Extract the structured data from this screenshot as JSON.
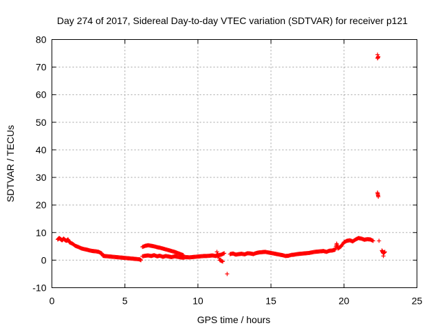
{
  "chart_data": {
    "type": "scatter",
    "title": "Day 274 of 2017, Sidereal Day-to-day VTEC variation (SDTVAR) for receiver p121",
    "xlabel": "GPS time / hours",
    "ylabel": "SDTVAR / TECUs",
    "xlim": [
      0,
      25
    ],
    "ylim": [
      -10,
      80
    ],
    "xticks": [
      "0",
      "5",
      "10",
      "15",
      "20",
      "25"
    ],
    "yticks": [
      "-10",
      "0",
      "10",
      "20",
      "30",
      "40",
      "50",
      "60",
      "70",
      "80"
    ],
    "grid": true,
    "marker": "plus",
    "color": "#ff0000",
    "series": [
      {
        "name": "SDTVAR",
        "x": [
          0.4,
          0.5,
          0.6,
          0.7,
          0.8,
          0.9,
          1.0,
          1.1,
          1.2,
          1.4,
          1.6,
          1.8,
          2.0,
          2.2,
          2.4,
          2.6,
          2.8,
          3.0,
          3.2,
          3.4,
          3.5,
          3.6,
          3.8,
          4.0,
          4.2,
          4.4,
          4.6,
          4.8,
          5.0,
          5.2,
          5.4,
          5.6,
          5.8,
          6.0,
          6.1,
          6.2,
          6.4,
          6.6,
          6.8,
          7.0,
          7.2,
          7.4,
          7.6,
          7.8,
          8.0,
          8.2,
          8.4,
          8.6,
          8.8,
          9.0,
          6.2,
          6.4,
          6.6,
          6.8,
          7.0,
          7.2,
          7.4,
          7.6,
          7.8,
          8.0,
          8.2,
          8.4,
          8.6,
          8.8,
          9.0,
          9.2,
          9.4,
          9.6,
          9.8,
          10.0,
          10.2,
          10.4,
          10.6,
          10.8,
          11.0,
          11.2,
          11.4,
          11.6,
          11.8,
          11.3,
          11.5,
          11.7,
          12.0,
          12.2,
          12.4,
          12.6,
          12.8,
          13.0,
          13.2,
          13.4,
          13.6,
          13.8,
          14.0,
          14.2,
          14.4,
          14.6,
          14.8,
          15.0,
          15.2,
          15.4,
          15.6,
          15.8,
          16.0,
          16.2,
          16.4,
          16.6,
          16.8,
          17.0,
          17.2,
          17.4,
          17.6,
          17.8,
          18.0,
          18.2,
          18.4,
          18.6,
          18.8,
          19.0,
          19.2,
          19.4,
          19.5,
          19.6,
          19.8,
          20.0,
          20.2,
          20.4,
          20.6,
          20.8,
          21.0,
          21.2,
          21.4,
          21.6,
          21.8,
          22.0,
          22.3,
          22.3,
          22.35,
          22.3,
          22.35,
          22.4,
          22.6,
          22.7,
          22.8,
          22.7
        ],
        "y": [
          7.5,
          8.0,
          7.6,
          7.2,
          7.8,
          7.3,
          7.0,
          7.5,
          6.5,
          6.0,
          5.2,
          4.8,
          4.3,
          4.0,
          3.8,
          3.5,
          3.3,
          3.2,
          3.0,
          2.5,
          1.6,
          1.5,
          1.4,
          1.3,
          1.2,
          1.1,
          1.0,
          0.9,
          0.8,
          0.7,
          0.6,
          0.5,
          0.4,
          0.3,
          0.0,
          4.8,
          5.2,
          5.4,
          5.2,
          5.0,
          4.7,
          4.5,
          4.2,
          3.9,
          3.6,
          3.3,
          3.0,
          2.6,
          2.2,
          1.8,
          1.4,
          1.6,
          1.7,
          1.5,
          1.8,
          1.4,
          1.6,
          1.2,
          1.5,
          1.3,
          1.1,
          1.4,
          1.2,
          1.0,
          0.9,
          1.1,
          1.0,
          1.1,
          1.2,
          1.3,
          1.4,
          1.5,
          1.5,
          1.6,
          1.7,
          1.5,
          1.8,
          2.0,
          2.5,
          3.0,
          0.0,
          -0.5,
          -5.0,
          2.2,
          2.4,
          2.0,
          2.2,
          2.3,
          2.1,
          2.5,
          2.4,
          2.2,
          2.6,
          2.8,
          2.9,
          3.0,
          2.8,
          2.6,
          2.4,
          2.2,
          2.0,
          1.8,
          1.5,
          1.6,
          1.9,
          2.0,
          2.2,
          2.3,
          2.4,
          2.5,
          2.6,
          2.8,
          3.0,
          3.1,
          3.2,
          3.3,
          3.0,
          3.4,
          3.5,
          3.8,
          6.0,
          4.2,
          5.0,
          6.5,
          7.0,
          7.2,
          6.8,
          7.5,
          8.0,
          7.8,
          7.4,
          7.6,
          7.5,
          7.0,
          74.5,
          73.2,
          73.8,
          24.5,
          23.0,
          7.0,
          3.5,
          2.5,
          3.0,
          1.5
        ]
      }
    ]
  }
}
